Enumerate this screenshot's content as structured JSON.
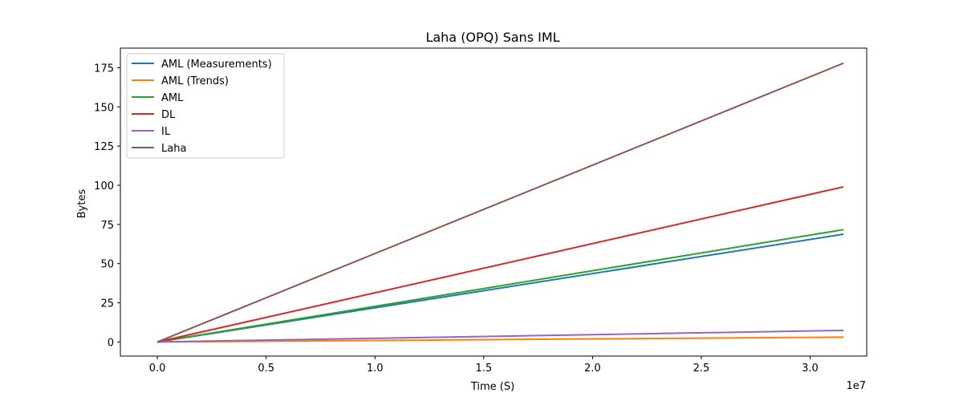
{
  "chart_data": {
    "type": "line",
    "title": "Laha (OPQ) Sans IML",
    "xlabel": "Time (S)",
    "ylabel": "Bytes",
    "x_offset_label": "1e7",
    "xlim": [
      -0.17,
      3.26
    ],
    "ylim": [
      -9.0,
      187.5
    ],
    "xticks": [
      0.0,
      0.5,
      1.0,
      1.5,
      2.0,
      2.5,
      3.0
    ],
    "xtick_labels": [
      "0.0",
      "0.5",
      "1.0",
      "1.5",
      "2.0",
      "2.5",
      "3.0"
    ],
    "yticks": [
      0,
      25,
      50,
      75,
      100,
      125,
      150,
      175
    ],
    "ytick_labels": [
      "0",
      "25",
      "50",
      "75",
      "100",
      "125",
      "150",
      "175"
    ],
    "grid": false,
    "legend_position": "top-left",
    "x": [
      0.0,
      3.1536
    ],
    "series": [
      {
        "name": "AML (Measurements)",
        "color": "#1f77b4",
        "values": [
          0,
          68.8
        ]
      },
      {
        "name": "AML (Trends)",
        "color": "#ff7f0e",
        "values": [
          0,
          3.1
        ]
      },
      {
        "name": "AML",
        "color": "#2ca02c",
        "values": [
          0,
          71.7
        ]
      },
      {
        "name": "DL",
        "color": "#d62728",
        "values": [
          0,
          99.0
        ]
      },
      {
        "name": "IL",
        "color": "#9467bd",
        "values": [
          0,
          7.4
        ]
      },
      {
        "name": "Laha",
        "color": "#8c564b",
        "values": [
          0,
          177.9
        ]
      }
    ]
  }
}
